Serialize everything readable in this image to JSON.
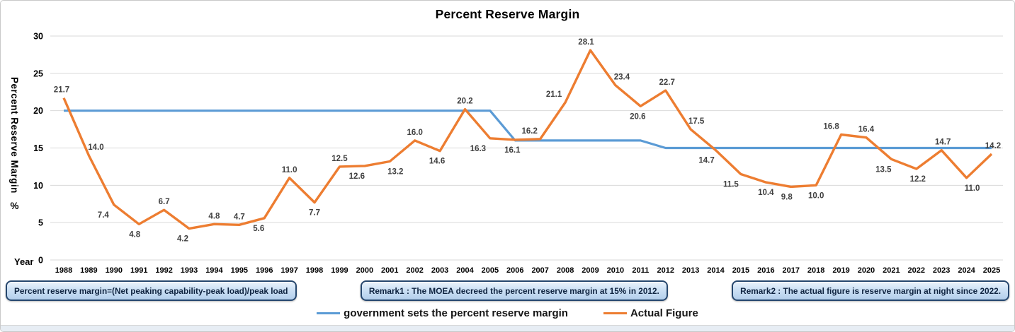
{
  "chart": {
    "title": "Percent Reserve Margin",
    "x_axis_label": "Year",
    "y_axis_label": "Percent Reserve Margin",
    "y_axis_unit": "%"
  },
  "chart_data": {
    "type": "line",
    "title": "Percent Reserve Margin",
    "xlabel": "Year",
    "ylabel": "Percent Reserve Margin %",
    "ylim": [
      0,
      30
    ],
    "yticks": [
      0,
      5,
      10,
      15,
      20,
      25,
      30
    ],
    "grid": true,
    "legend_position": "bottom",
    "x": [
      "1988",
      "1989",
      "1990",
      "1991",
      "1992",
      "1993",
      "1994",
      "1995",
      "1996",
      "1997",
      "1998",
      "1999",
      "2000",
      "2001",
      "2002",
      "2003",
      "2004",
      "2005",
      "2006",
      "2007",
      "2008",
      "2009",
      "2010",
      "2011",
      "2012",
      "2013",
      "2014",
      "2015",
      "2016",
      "2017",
      "2018",
      "2019",
      "2020",
      "2021",
      "2022",
      "2023",
      "2024",
      "2025"
    ],
    "series": [
      {
        "name": "government sets the percent reserve margin",
        "color": "#5B9BD5",
        "data_labels": false,
        "values": [
          20,
          20,
          20,
          20,
          20,
          20,
          20,
          20,
          20,
          20,
          20,
          20,
          20,
          20,
          20,
          20,
          20,
          20,
          16,
          16,
          16,
          16,
          16,
          16,
          15,
          15,
          15,
          15,
          15,
          15,
          15,
          15,
          15,
          15,
          15,
          15,
          15,
          15
        ]
      },
      {
        "name": "Actual Figure",
        "color": "#ED7D31",
        "data_labels": true,
        "values": [
          21.7,
          14.0,
          7.4,
          4.8,
          6.7,
          4.2,
          4.8,
          4.7,
          5.6,
          11.0,
          7.7,
          12.5,
          12.6,
          13.2,
          16.0,
          14.6,
          20.2,
          16.3,
          16.1,
          16.2,
          21.1,
          28.1,
          23.4,
          20.6,
          22.7,
          17.5,
          14.7,
          11.5,
          10.4,
          9.8,
          10.0,
          16.8,
          16.4,
          13.5,
          12.2,
          14.7,
          11.0,
          14.2
        ]
      }
    ],
    "label_pos": [
      "a",
      "a",
      "b",
      "b",
      "a",
      "b",
      "a",
      "a",
      "b",
      "a",
      "b",
      "a",
      "b",
      "b",
      "a",
      "b",
      "a",
      "b",
      "b",
      "a",
      "a",
      "a",
      "a",
      "b",
      "a",
      "a",
      "b",
      "b",
      "b",
      "b",
      "b",
      "a",
      "a",
      "b",
      "b",
      "a",
      "b",
      "a"
    ],
    "label_dx": [
      -3,
      10,
      -15,
      -6,
      0,
      -9,
      0,
      0,
      -8,
      0,
      0,
      0,
      -11,
      8,
      0,
      -4,
      0,
      -17,
      -4,
      -15,
      -16,
      -6,
      9,
      -4,
      2,
      8,
      -13,
      -14,
      0,
      -6,
      0,
      -14,
      0,
      -11,
      2,
      2,
      8,
      2
    ],
    "label_color": "#404040",
    "gridline_color": "#D9D9D9"
  },
  "remarks": [
    "Percent reserve margin=(Net peaking capability-peak load)/peak load",
    "Remark1 : The MOEA decreed the percent reserve margin at 15% in 2012.",
    "Remark2 : The actual figure is reserve margin at night since 2022."
  ]
}
